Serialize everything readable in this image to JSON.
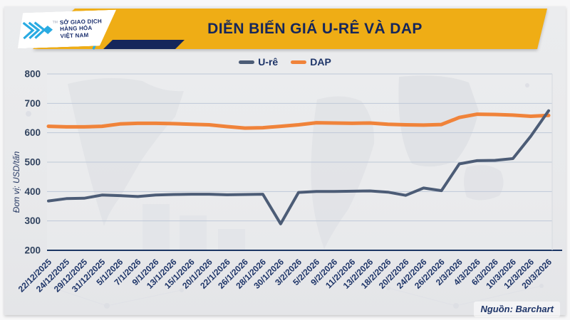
{
  "header": {
    "title": "DIỄN BIẾN GIÁ U-RÊ VÀ DAP",
    "logo": {
      "line1": "SỞ GIAO DỊCH",
      "line2": "HÀNG HÓA",
      "line3": "VIỆT NAM",
      "tm": "TM"
    }
  },
  "legend": {
    "items": [
      {
        "label": "U-rê",
        "color": "#4C5C76"
      },
      {
        "label": "DAP",
        "color": "#F0833A"
      }
    ]
  },
  "y_axis": {
    "unit_label": "Đơn vị: USD/tấn",
    "ticks": [
      800,
      700,
      600,
      500,
      400,
      300,
      200
    ]
  },
  "footer": {
    "source": "Nguồn: Barchart"
  },
  "colors": {
    "band_gold": "#EFAD15",
    "navy_text": "#15265B",
    "grid_line": "#BFC9D8",
    "axis_line": "#1C3664",
    "tick_label": "#31435F",
    "x_label": "#1D3468",
    "logo_cyan": "#29ABE2"
  },
  "chart_data": {
    "type": "line",
    "title": "DIỄN BIẾN GIÁ U-RÊ VÀ DAP",
    "ylabel": "Đơn vị: USD/tấn",
    "ylim": [
      200,
      800
    ],
    "grid": "horizontal",
    "legend_position": "top",
    "categories": [
      "22/12/2025",
      "24/12/2025",
      "29/12/2025",
      "31/12/2025",
      "5/1/2026",
      "7/1/2026",
      "9/1/2026",
      "13/1/2026",
      "15/1/2026",
      "20/1/2026",
      "22/1/2026",
      "26/1/2026",
      "28/1/2026",
      "30/1/2026",
      "3/2/2026",
      "5/2/2026",
      "9/2/2026",
      "11/2/2026",
      "13/2/2026",
      "18/2/2026",
      "20/2/2026",
      "24/2/2026",
      "26/2/2026",
      "2/3/2026",
      "4/3/2026",
      "6/3/2026",
      "10/3/2026",
      "12/3/2026",
      "20/3/2026"
    ],
    "series": [
      {
        "name": "U-rê",
        "color": "#4C5C76",
        "width": 4,
        "values": [
          368,
          376,
          377,
          388,
          386,
          383,
          388,
          390,
          391,
          391,
          389,
          390,
          391,
          290,
          397,
          400,
          400,
          401,
          402,
          398,
          387,
          412,
          403,
          494,
          505,
          506,
          512,
          588,
          675
        ]
      },
      {
        "name": "DAP",
        "color": "#F0833A",
        "width": 5,
        "values": [
          622,
          620,
          620,
          622,
          630,
          632,
          632,
          631,
          629,
          627,
          621,
          616,
          617,
          622,
          627,
          634,
          633,
          632,
          633,
          629,
          627,
          626,
          628,
          652,
          663,
          662,
          660,
          656,
          659
        ]
      }
    ]
  }
}
